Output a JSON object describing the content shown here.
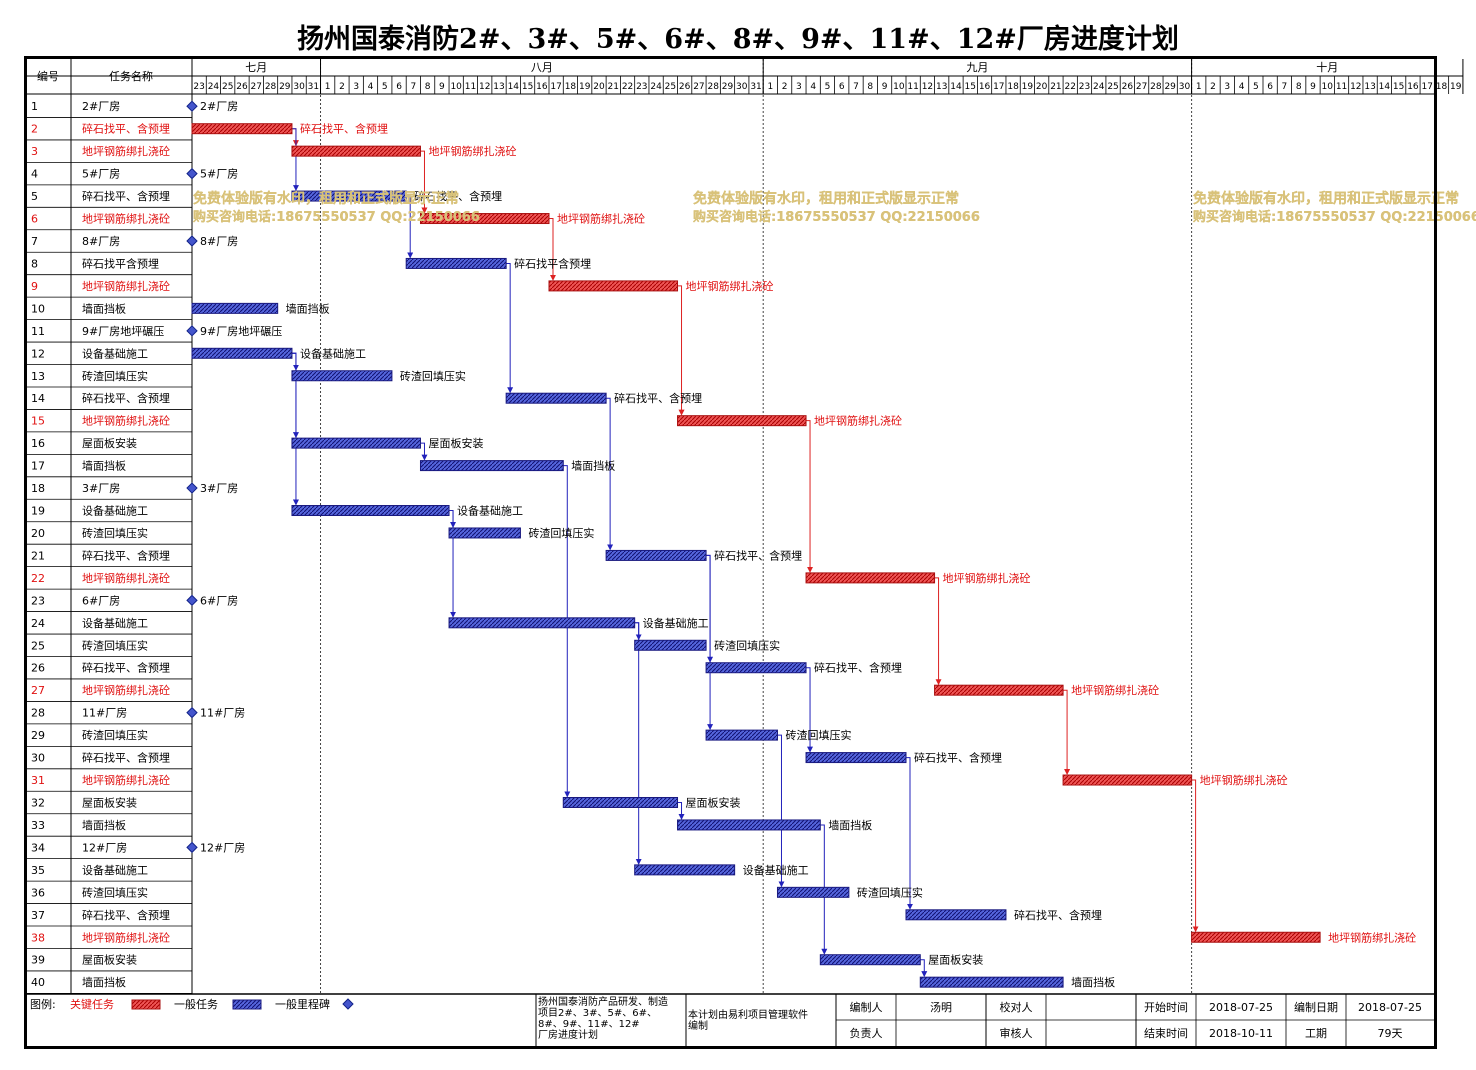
{
  "title": "扬州国泰消防2#、3#、5#、6#、8#、9#、11#、12#厂房进度计划",
  "table": {
    "id_header": "编号",
    "name_header": "任务名称"
  },
  "months": [
    "七月",
    "八月",
    "九月",
    "十月"
  ],
  "day_labels": [
    "23",
    "24",
    "25",
    "26",
    "27",
    "28",
    "29",
    "30",
    "31",
    "1",
    "2",
    "3",
    "4",
    "5",
    "6",
    "7",
    "8",
    "9",
    "10",
    "11",
    "12",
    "13",
    "14",
    "15",
    "16",
    "17",
    "18",
    "19",
    "20",
    "21",
    "22",
    "23",
    "24",
    "25",
    "26",
    "27",
    "28",
    "29",
    "30",
    "31",
    "1",
    "2",
    "3",
    "4",
    "5",
    "6",
    "7",
    "8",
    "9",
    "10",
    "11",
    "12",
    "13",
    "14",
    "15",
    "16",
    "17",
    "18",
    "19",
    "20",
    "21",
    "22",
    "23",
    "24",
    "25",
    "26",
    "27",
    "28",
    "29",
    "30",
    "1",
    "2",
    "3",
    "4",
    "5",
    "6",
    "7",
    "8",
    "9",
    "10",
    "11",
    "12",
    "13",
    "14",
    "15",
    "16",
    "17",
    "18",
    "19"
  ],
  "colors": {
    "critical": "#dd3333",
    "normal": "#3333bb",
    "milestone": "#4455cc",
    "critical_text": "#e01010",
    "watermark": "#d8c27a"
  },
  "tasks": [
    {
      "id": "1",
      "name": "2#厂房",
      "type": "milestone",
      "start": "2018-07-23",
      "label": "2#厂房",
      "preds": []
    },
    {
      "id": "2",
      "name": "碎石找平、含预埋",
      "type": "critical",
      "start": "2018-07-23",
      "end": "2018-07-29",
      "label": "碎石找平、含预埋",
      "preds": []
    },
    {
      "id": "3",
      "name": "地坪钢筋绑扎浇砼",
      "type": "critical",
      "start": "2018-07-30",
      "end": "2018-08-07",
      "label": "地坪钢筋绑扎浇砼",
      "preds": [
        "2"
      ]
    },
    {
      "id": "4",
      "name": "5#厂房",
      "type": "milestone",
      "start": "2018-07-23",
      "label": "5#厂房",
      "preds": []
    },
    {
      "id": "5",
      "name": "碎石找平、含预埋",
      "type": "normal",
      "start": "2018-07-30",
      "end": "2018-08-06",
      "label": "碎石找平、含预埋",
      "preds": [
        "2"
      ]
    },
    {
      "id": "6",
      "name": "地坪钢筋绑扎浇砼",
      "type": "critical",
      "start": "2018-08-08",
      "end": "2018-08-16",
      "label": "地坪钢筋绑扎浇砼",
      "preds": [
        "3"
      ]
    },
    {
      "id": "7",
      "name": "8#厂房",
      "type": "milestone",
      "start": "2018-07-23",
      "label": "8#厂房",
      "preds": []
    },
    {
      "id": "8",
      "name": "碎石找平含预埋",
      "type": "normal",
      "start": "2018-08-07",
      "end": "2018-08-13",
      "label": "碎石找平含预埋",
      "preds": [
        "5"
      ]
    },
    {
      "id": "9",
      "name": "地坪钢筋绑扎浇砼",
      "type": "critical",
      "start": "2018-08-17",
      "end": "2018-08-25",
      "label": "地坪钢筋绑扎浇砼",
      "preds": [
        "6"
      ]
    },
    {
      "id": "10",
      "name": "墙面挡板",
      "type": "normal",
      "start": "2018-07-23",
      "end": "2018-07-28",
      "label": "墙面挡板",
      "preds": []
    },
    {
      "id": "11",
      "name": "9#厂房地坪碾压",
      "type": "milestone",
      "start": "2018-07-23",
      "label": "9#厂房地坪碾压",
      "preds": []
    },
    {
      "id": "12",
      "name": "设备基础施工",
      "type": "normal",
      "start": "2018-07-23",
      "end": "2018-07-29",
      "label": "设备基础施工",
      "preds": []
    },
    {
      "id": "13",
      "name": "砖渣回填压实",
      "type": "normal",
      "start": "2018-07-30",
      "end": "2018-08-05",
      "label": "砖渣回填压实",
      "preds": [
        "12"
      ]
    },
    {
      "id": "14",
      "name": "碎石找平、含预埋",
      "type": "normal",
      "start": "2018-08-14",
      "end": "2018-08-20",
      "label": "碎石找平、含预埋",
      "preds": [
        "8"
      ]
    },
    {
      "id": "15",
      "name": "地坪钢筋绑扎浇砼",
      "type": "critical",
      "start": "2018-08-26",
      "end": "2018-09-03",
      "label": "地坪钢筋绑扎浇砼",
      "preds": [
        "9"
      ]
    },
    {
      "id": "16",
      "name": "屋面板安装",
      "type": "normal",
      "start": "2018-07-30",
      "end": "2018-08-07",
      "label": "屋面板安装",
      "preds": [
        "12"
      ]
    },
    {
      "id": "17",
      "name": "墙面挡板",
      "type": "normal",
      "start": "2018-08-08",
      "end": "2018-08-17",
      "label": "墙面挡板",
      "preds": [
        "16"
      ]
    },
    {
      "id": "18",
      "name": "3#厂房",
      "type": "milestone",
      "start": "2018-07-23",
      "label": "3#厂房",
      "preds": []
    },
    {
      "id": "19",
      "name": "设备基础施工",
      "type": "normal",
      "start": "2018-07-30",
      "end": "2018-08-09",
      "label": "设备基础施工",
      "preds": [
        "12"
      ]
    },
    {
      "id": "20",
      "name": "砖渣回填压实",
      "type": "normal",
      "start": "2018-08-10",
      "end": "2018-08-14",
      "label": "砖渣回填压实",
      "preds": [
        "19"
      ]
    },
    {
      "id": "21",
      "name": "碎石找平、含预埋",
      "type": "normal",
      "start": "2018-08-21",
      "end": "2018-08-27",
      "label": "碎石找平、含预埋",
      "preds": [
        "14"
      ]
    },
    {
      "id": "22",
      "name": "地坪钢筋绑扎浇砼",
      "type": "critical",
      "start": "2018-09-04",
      "end": "2018-09-12",
      "label": "地坪钢筋绑扎浇砼",
      "preds": [
        "15"
      ]
    },
    {
      "id": "23",
      "name": "6#厂房",
      "type": "milestone",
      "start": "2018-07-23",
      "label": "6#厂房",
      "preds": []
    },
    {
      "id": "24",
      "name": "设备基础施工",
      "type": "normal",
      "start": "2018-08-10",
      "end": "2018-08-22",
      "label": "设备基础施工",
      "preds": [
        "19"
      ]
    },
    {
      "id": "25",
      "name": "砖渣回填压实",
      "type": "normal",
      "start": "2018-08-23",
      "end": "2018-08-27",
      "label": "砖渣回填压实",
      "preds": [
        "24"
      ]
    },
    {
      "id": "26",
      "name": "碎石找平、含预埋",
      "type": "normal",
      "start": "2018-08-28",
      "end": "2018-09-03",
      "label": "碎石找平、含预埋",
      "preds": [
        "21"
      ]
    },
    {
      "id": "27",
      "name": "地坪钢筋绑扎浇砼",
      "type": "critical",
      "start": "2018-09-13",
      "end": "2018-09-21",
      "label": "地坪钢筋绑扎浇砼",
      "preds": [
        "22"
      ]
    },
    {
      "id": "28",
      "name": "11#厂房",
      "type": "milestone",
      "start": "2018-07-23",
      "label": "11#厂房",
      "preds": []
    },
    {
      "id": "29",
      "name": "砖渣回填压实",
      "type": "normal",
      "start": "2018-08-28",
      "end": "2018-09-01",
      "label": "砖渣回填压实",
      "preds": [
        "21"
      ]
    },
    {
      "id": "30",
      "name": "碎石找平、含预埋",
      "type": "normal",
      "start": "2018-09-04",
      "end": "2018-09-10",
      "label": "碎石找平、含预埋",
      "preds": [
        "26"
      ]
    },
    {
      "id": "31",
      "name": "地坪钢筋绑扎浇砼",
      "type": "critical",
      "start": "2018-09-22",
      "end": "2018-09-30",
      "label": "地坪钢筋绑扎浇砼",
      "preds": [
        "27"
      ]
    },
    {
      "id": "32",
      "name": "屋面板安装",
      "type": "normal",
      "start": "2018-08-18",
      "end": "2018-08-25",
      "label": "屋面板安装",
      "preds": [
        "17"
      ]
    },
    {
      "id": "33",
      "name": "墙面挡板",
      "type": "normal",
      "start": "2018-08-26",
      "end": "2018-09-04",
      "label": "墙面挡板",
      "preds": [
        "32"
      ]
    },
    {
      "id": "34",
      "name": "12#厂房",
      "type": "milestone",
      "start": "2018-07-23",
      "label": "12#厂房",
      "preds": []
    },
    {
      "id": "35",
      "name": "设备基础施工",
      "type": "normal",
      "start": "2018-08-23",
      "end": "2018-08-29",
      "label": "设备基础施工",
      "preds": [
        "24"
      ]
    },
    {
      "id": "36",
      "name": "砖渣回填压实",
      "type": "normal",
      "start": "2018-09-02",
      "end": "2018-09-06",
      "label": "砖渣回填压实",
      "preds": [
        "29"
      ]
    },
    {
      "id": "37",
      "name": "碎石找平、含预埋",
      "type": "normal",
      "start": "2018-09-11",
      "end": "2018-09-17",
      "label": "碎石找平、含预埋",
      "preds": [
        "30"
      ]
    },
    {
      "id": "38",
      "name": "地坪钢筋绑扎浇砼",
      "type": "critical",
      "start": "2018-10-01",
      "end": "2018-10-09",
      "label": "地坪钢筋绑扎浇砼",
      "preds": [
        "31"
      ]
    },
    {
      "id": "39",
      "name": "屋面板安装",
      "type": "normal",
      "start": "2018-09-05",
      "end": "2018-09-11",
      "label": "屋面板安装",
      "preds": [
        "33"
      ]
    },
    {
      "id": "40",
      "name": "墙面挡板",
      "type": "normal",
      "start": "2018-09-12",
      "end": "2018-09-21",
      "label": "墙面挡板",
      "preds": [
        "39"
      ]
    }
  ],
  "watermark": {
    "line1": "免费体验版有水印，租用和正式版显示正常",
    "line2": "购买咨询电话:18675550537 QQ:22150066"
  },
  "legend": {
    "label": "图例:",
    "critical": "关键任务",
    "normal": "一般任务",
    "milestone": "一般里程碑"
  },
  "footer": {
    "project": "扬州国泰消防产品研发、制造项目2#、3#、5#、6#、8#、9#、11#、12#厂房进度计划",
    "note": "本计划由易利项目管理软件编制",
    "compiler_label": "编制人",
    "compiler": "汤明",
    "checker_label": "校对人",
    "checker": "",
    "owner_label": "负责人",
    "owner": "",
    "reviewer_label": "审核人",
    "reviewer": "",
    "start_label": "开始时间",
    "start": "2018-07-25",
    "date_label": "编制日期",
    "date": "2018-07-25",
    "end_label": "结束时间",
    "end": "2018-10-11",
    "duration_label": "工期",
    "duration": "79天"
  }
}
